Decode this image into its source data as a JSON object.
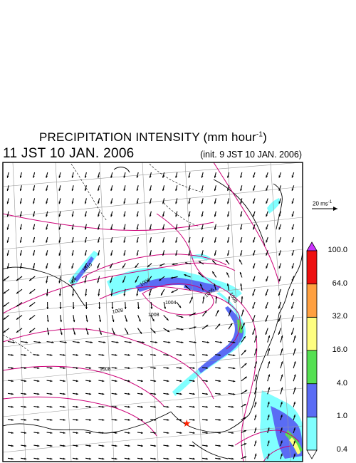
{
  "header": {
    "title": "PRECIPITATION INTENSITY (mm hour",
    "title_exponent": "-1",
    "title_close": ")",
    "valid_time": "11 JST 10 JAN. 2006",
    "init_time": "(init. 9 JST 10 JAN. 2006)"
  },
  "wind_scale": {
    "label": "20 ms",
    "label_exponent": "-1"
  },
  "colorbar": {
    "levels": [
      "0.4",
      "1.0",
      "4.0",
      "16.0",
      "32.0",
      "64.0",
      "100.0"
    ],
    "colors": [
      "#80ffff",
      "#5a6cf4",
      "#55e052",
      "#ffff80",
      "#ffa040",
      "#ee1010"
    ],
    "over_color": "#cc33ff",
    "under_color": "#ffffff"
  },
  "map": {
    "isobar_color": "#cc0077",
    "coast_color": "#000000",
    "isobar_labels": [
      "1006",
      "1006",
      "1006",
      "1004",
      "1008",
      "1008",
      "1008",
      "1008",
      "1010"
    ],
    "marker_color": "#ff2200",
    "marker_icon": "star-icon"
  }
}
